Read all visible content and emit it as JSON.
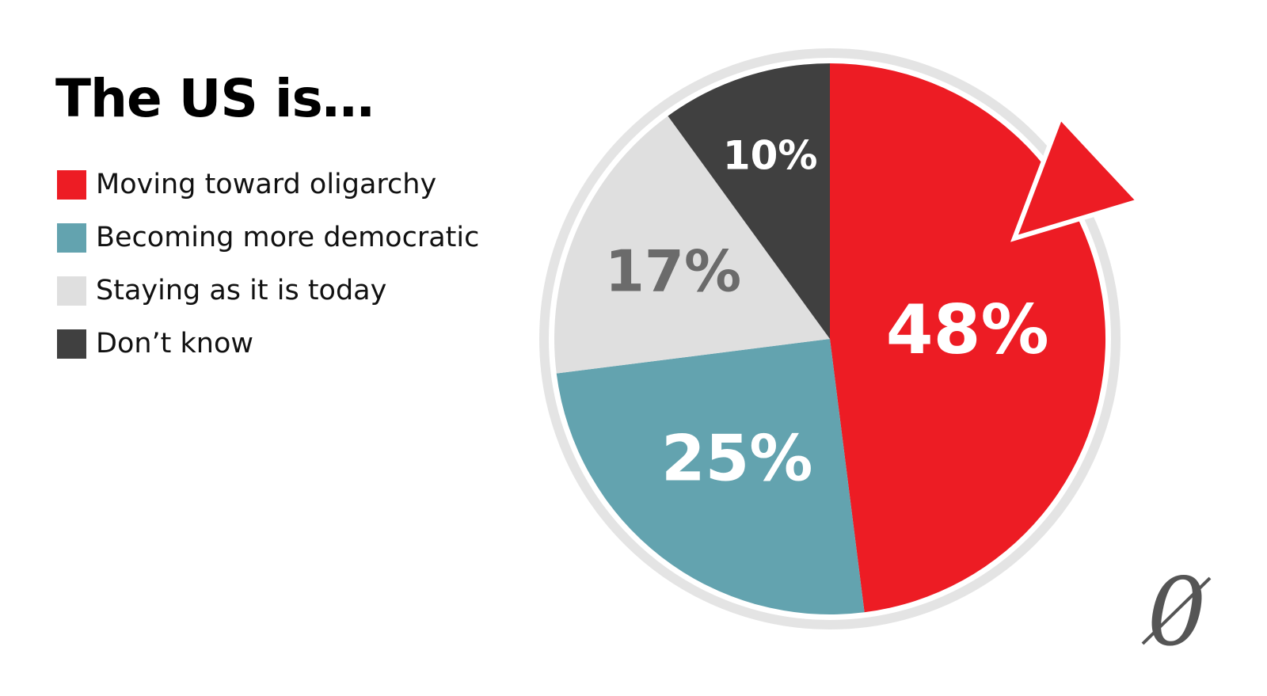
{
  "chart_data": {
    "type": "pie",
    "title": "The US is…",
    "categories": [
      "Moving toward oligarchy",
      "Becoming more democratic",
      "Staying as it is today",
      "Don’t know"
    ],
    "values": [
      48,
      25,
      17,
      10
    ],
    "value_labels": [
      "48%",
      "25%",
      "17%",
      "10%"
    ],
    "colors": [
      "#ED1C24",
      "#63A3AF",
      "#DFDFDF",
      "#404040"
    ],
    "label_colors": [
      "#FFFFFF",
      "#FFFFFF",
      "#6B6B6B",
      "#FFFFFF"
    ],
    "legend_position": "left",
    "start_angle_deg": 0,
    "direction": "clockwise",
    "ring_color": "#E4E4E4",
    "arrow_color": "#ED1C24"
  },
  "logo": {
    "mark": "0"
  }
}
